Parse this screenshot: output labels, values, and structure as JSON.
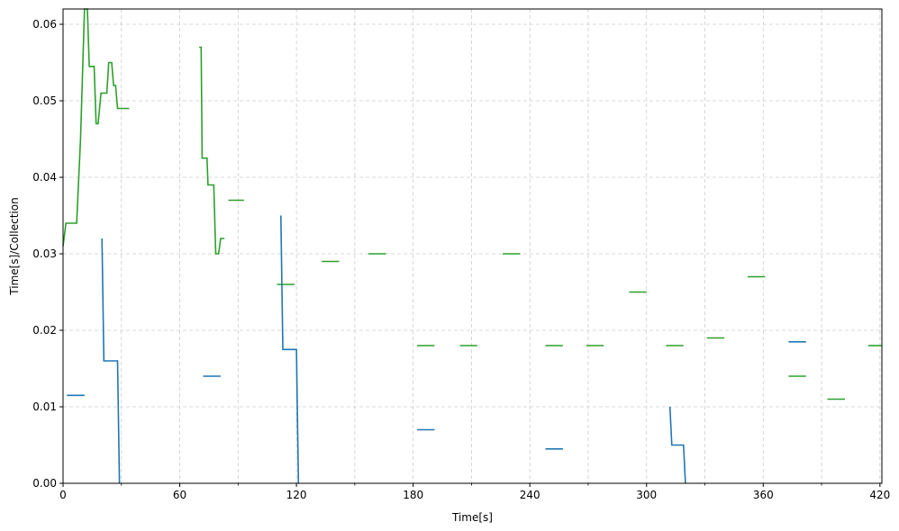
{
  "chart_data": {
    "type": "line",
    "title": "",
    "xlabel": "Time[s]",
    "ylabel": "Time[s]/Collection",
    "xlim": [
      0,
      421
    ],
    "ylim": [
      0,
      0.062
    ],
    "x_ticks": [
      0,
      60,
      120,
      180,
      240,
      300,
      360,
      420
    ],
    "x_tick_labels": [
      "0",
      "60",
      "120",
      "180",
      "240",
      "300",
      "360",
      "420"
    ],
    "x_minor_ticks": [
      30,
      90,
      150,
      210,
      270,
      330,
      390
    ],
    "y_ticks": [
      0,
      0.01,
      0.02,
      0.03,
      0.04,
      0.05,
      0.06
    ],
    "y_tick_labels": [
      "0.00",
      "0.01",
      "0.02",
      "0.03",
      "0.04",
      "0.05",
      "0.06"
    ],
    "grid": true,
    "colors": {
      "series_blue": "#1f77b4",
      "series_green": "#2ca02c",
      "grid": "#cccccc"
    },
    "series": [
      {
        "color": "#2ca02c",
        "segments": [
          [
            [
              0,
              0.031
            ],
            [
              1.5,
              0.034
            ],
            [
              7,
              0.034
            ],
            [
              9,
              0.045
            ],
            [
              11,
              0.062
            ],
            [
              12.5,
              0.062
            ],
            [
              13.5,
              0.0545
            ],
            [
              16,
              0.0545
            ],
            [
              17,
              0.047
            ],
            [
              18,
              0.047
            ],
            [
              19.5,
              0.051
            ],
            [
              22.5,
              0.051
            ],
            [
              23.5,
              0.055
            ],
            [
              25,
              0.055
            ],
            [
              26,
              0.052
            ],
            [
              27,
              0.052
            ],
            [
              28,
              0.049
            ],
            [
              34,
              0.049
            ]
          ],
          [
            [
              70,
              0.057
            ],
            [
              71,
              0.057
            ],
            [
              71.5,
              0.0425
            ],
            [
              74,
              0.0425
            ],
            [
              74.5,
              0.039
            ],
            [
              77.5,
              0.039
            ],
            [
              78.5,
              0.03
            ],
            [
              80,
              0.03
            ],
            [
              81,
              0.032
            ],
            [
              83,
              0.032
            ]
          ],
          [
            [
              85,
              0.037
            ],
            [
              93,
              0.037
            ]
          ],
          [
            [
              110,
              0.026
            ],
            [
              119,
              0.026
            ]
          ],
          [
            [
              133,
              0.029
            ],
            [
              142,
              0.029
            ]
          ],
          [
            [
              157,
              0.03
            ],
            [
              166,
              0.03
            ]
          ],
          [
            [
              182,
              0.018
            ],
            [
              191,
              0.018
            ]
          ],
          [
            [
              204,
              0.018
            ],
            [
              213,
              0.018
            ]
          ],
          [
            [
              226,
              0.03
            ],
            [
              235,
              0.03
            ]
          ],
          [
            [
              248,
              0.018
            ],
            [
              257,
              0.018
            ]
          ],
          [
            [
              269,
              0.018
            ],
            [
              278,
              0.018
            ]
          ],
          [
            [
              291,
              0.025
            ],
            [
              300,
              0.025
            ]
          ],
          [
            [
              310,
              0.018
            ],
            [
              319,
              0.018
            ]
          ],
          [
            [
              331,
              0.019
            ],
            [
              340,
              0.019
            ]
          ],
          [
            [
              352,
              0.027
            ],
            [
              361,
              0.027
            ]
          ],
          [
            [
              373,
              0.014
            ],
            [
              382,
              0.014
            ]
          ],
          [
            [
              393,
              0.011
            ],
            [
              402,
              0.011
            ]
          ],
          [
            [
              414,
              0.018
            ],
            [
              421,
              0.018
            ]
          ]
        ]
      },
      {
        "color": "#1f77b4",
        "segments": [
          [
            [
              2,
              0.0115
            ],
            [
              11,
              0.0115
            ]
          ],
          [
            [
              20,
              0.032
            ],
            [
              21,
              0.016
            ],
            [
              28,
              0.016
            ],
            [
              29,
              0.0
            ]
          ],
          [
            [
              72,
              0.014
            ],
            [
              81,
              0.014
            ]
          ],
          [
            [
              112,
              0.035
            ],
            [
              113,
              0.0175
            ],
            [
              120,
              0.0175
            ],
            [
              121,
              0.0
            ]
          ],
          [
            [
              182,
              0.007
            ],
            [
              191,
              0.007
            ]
          ],
          [
            [
              248,
              0.0045
            ],
            [
              257,
              0.0045
            ]
          ],
          [
            [
              312,
              0.01
            ],
            [
              313,
              0.005
            ],
            [
              319,
              0.005
            ],
            [
              320,
              0.0
            ]
          ],
          [
            [
              373,
              0.0185
            ],
            [
              382,
              0.0185
            ]
          ]
        ]
      }
    ]
  }
}
